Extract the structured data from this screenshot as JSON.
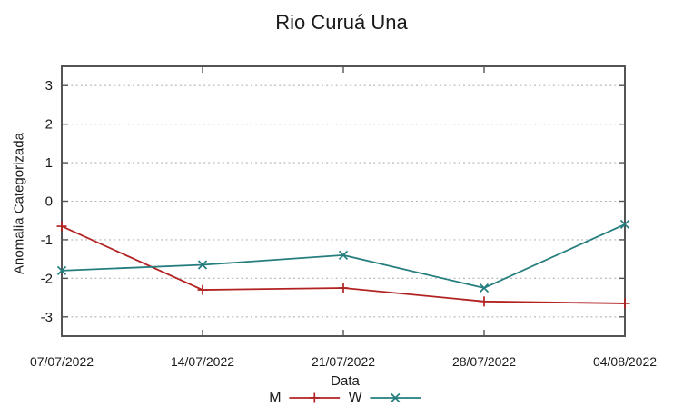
{
  "chart_data": {
    "type": "line",
    "title": "Rio Curuá Una",
    "xlabel": "Data",
    "ylabel": "Anomalia Categorizada",
    "categories": [
      "07/07/2022",
      "14/07/2022",
      "21/07/2022",
      "28/07/2022",
      "04/08/2022"
    ],
    "series": [
      {
        "name": "M",
        "color": "#b22222",
        "marker": "plus",
        "values": [
          -0.65,
          -2.3,
          -2.25,
          -2.6,
          -2.65
        ]
      },
      {
        "name": "W",
        "color": "#257d7d",
        "marker": "cross",
        "values": [
          -1.8,
          -1.65,
          -1.4,
          -2.25,
          -0.6
        ]
      }
    ],
    "yticks": [
      -3,
      -2,
      -1,
      0,
      1,
      2,
      3
    ],
    "ylim": [
      -3.5,
      3.5
    ],
    "grid": "dotted horizontal",
    "legend_position": "bottom-center",
    "style": {
      "border_color": "#545454",
      "grid_color": "#b3b3b3",
      "text_color": "#1a1a1a",
      "background": "#ffffff"
    }
  }
}
